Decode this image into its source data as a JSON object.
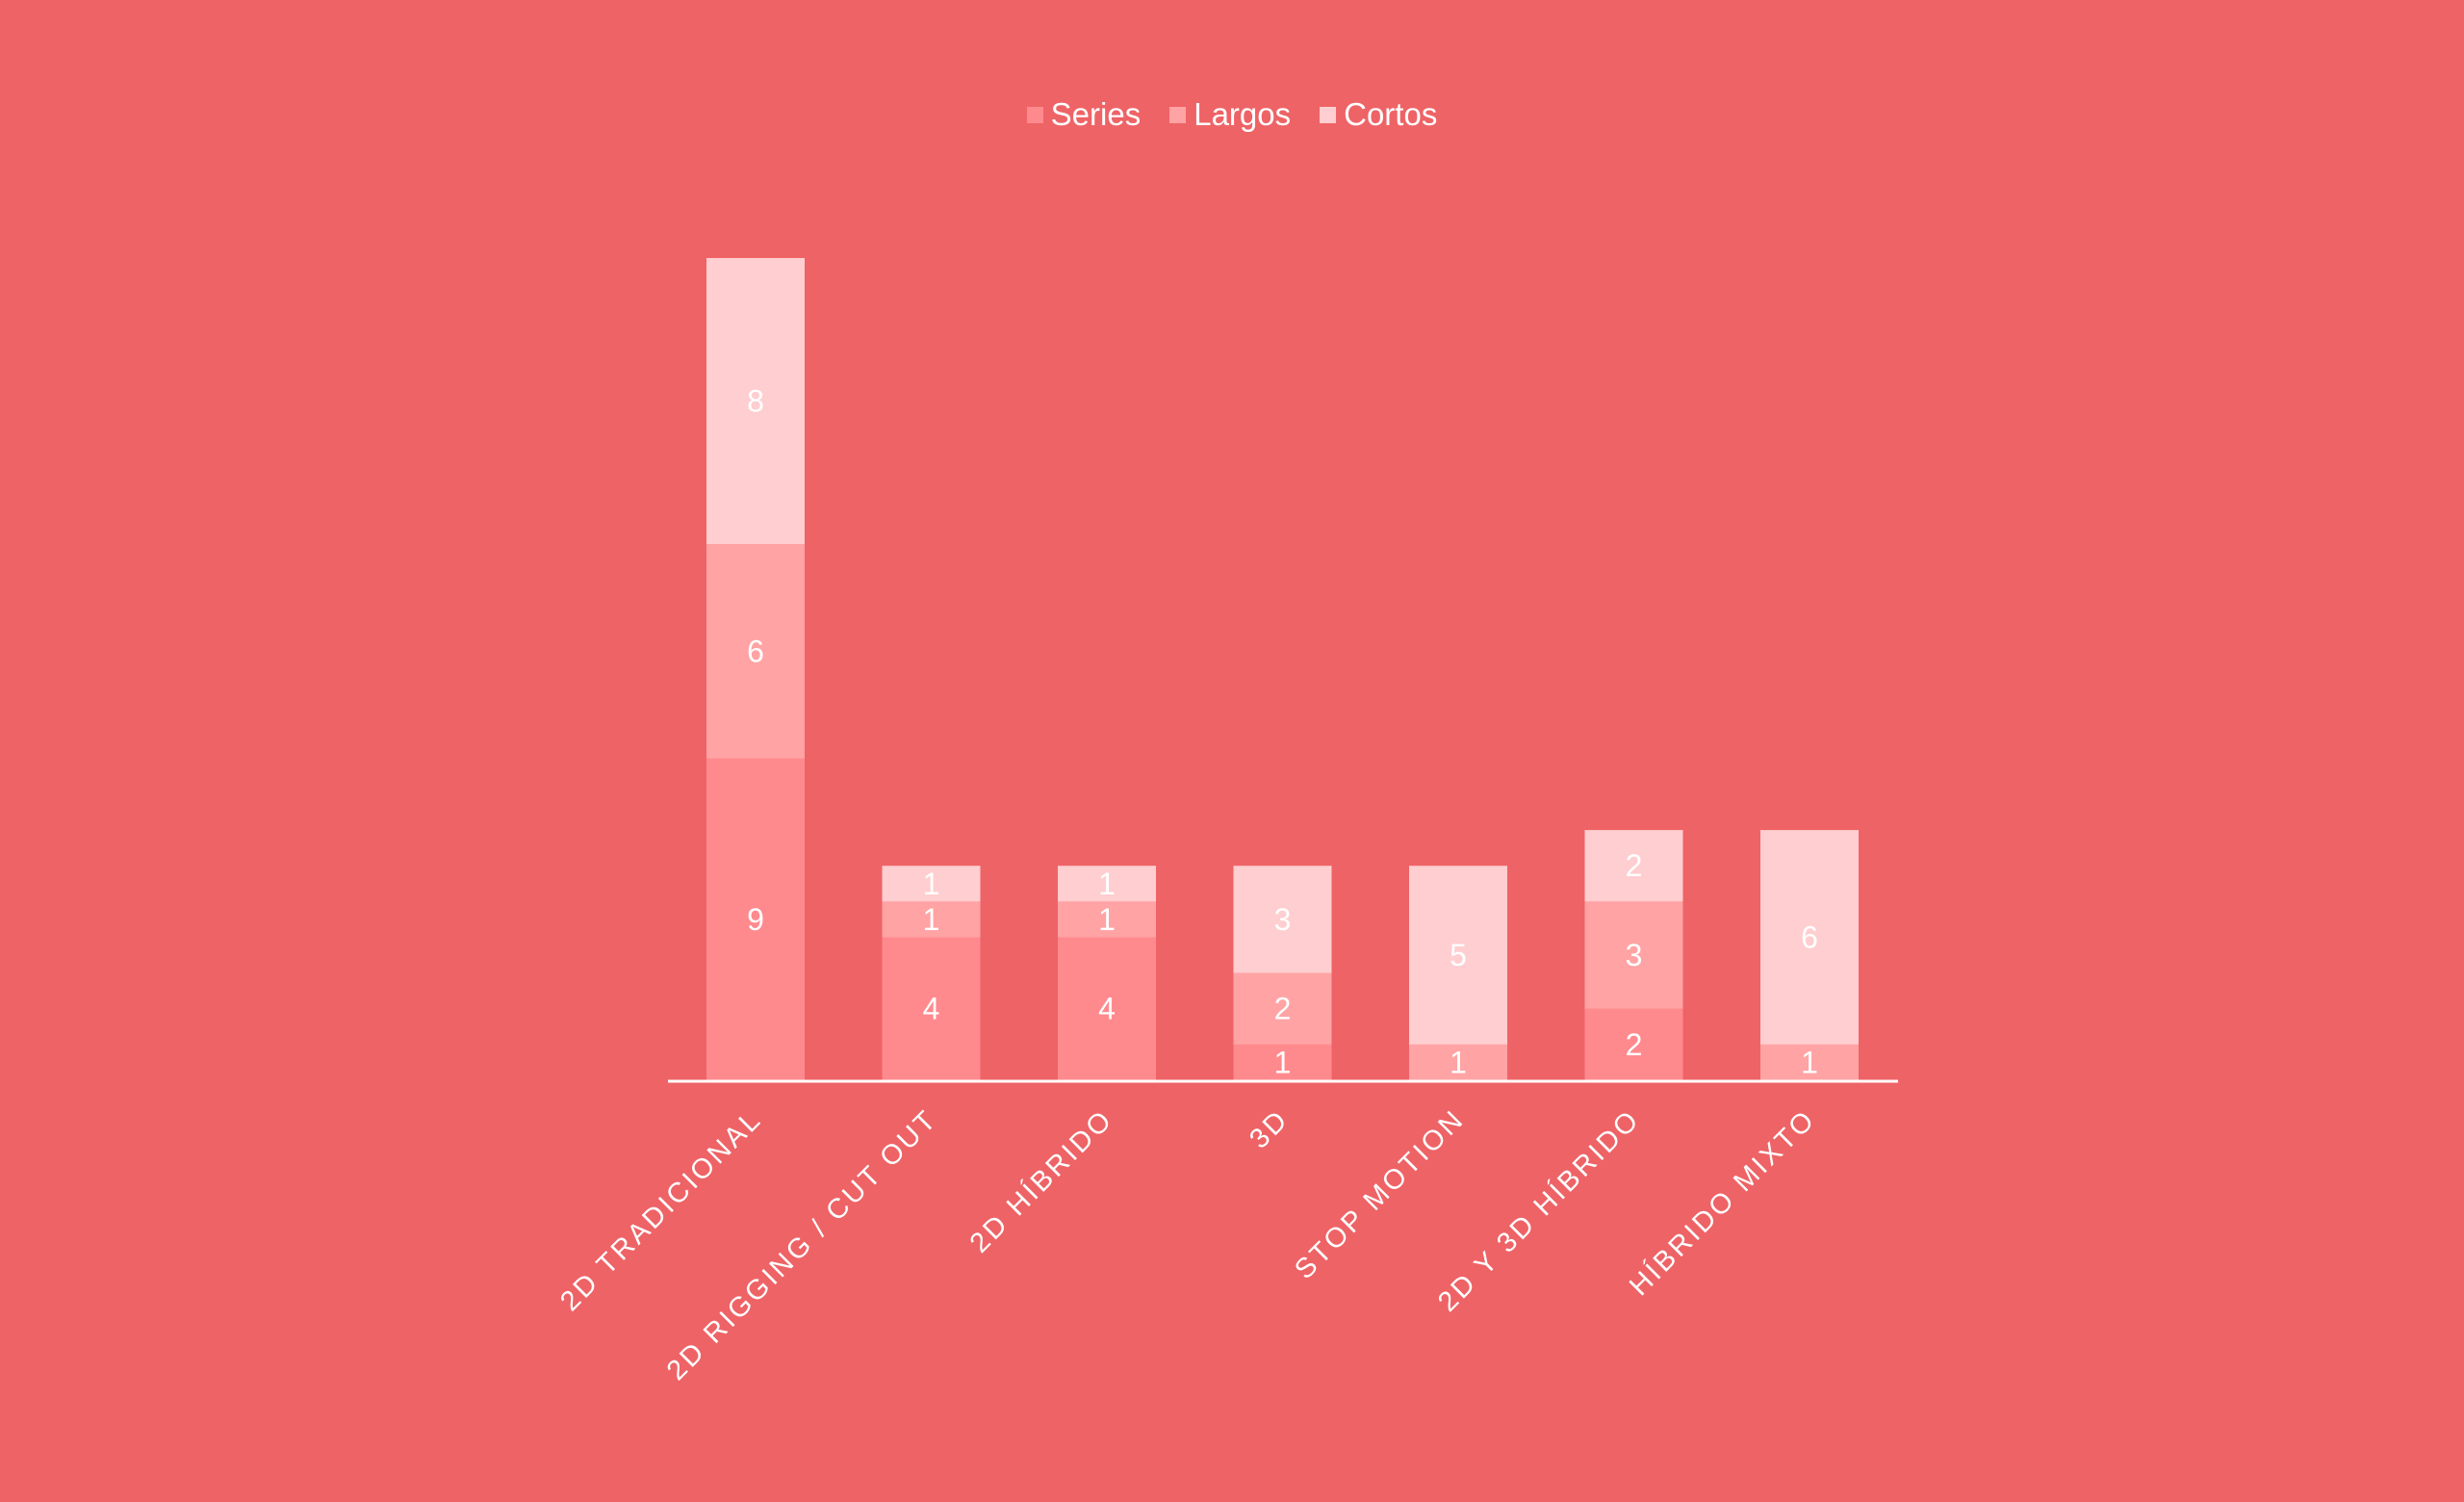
{
  "chart_data": {
    "type": "bar",
    "stacked": true,
    "categories": [
      "2D TRADICIONAL",
      "2D RIGGING / CUT OUT",
      "2D HÍBRIDO",
      "3D",
      "STOP MOTION",
      "2D Y 3D HÍBRIDO",
      "HÍBRIDO MIXTO"
    ],
    "series": [
      {
        "name": "Series",
        "color": "#FF8A8E",
        "values": [
          9,
          4,
          4,
          1,
          0,
          2,
          0
        ]
      },
      {
        "name": "Largos",
        "color": "#FFA3A4",
        "values": [
          6,
          1,
          1,
          2,
          1,
          3,
          1
        ]
      },
      {
        "name": "Cortos",
        "color": "#FFCED0",
        "values": [
          8,
          1,
          1,
          3,
          5,
          2,
          6
        ]
      }
    ],
    "title": "",
    "xlabel": "",
    "ylabel": "",
    "ylim": [
      0,
      23
    ],
    "grid": false,
    "legend_position": "top-center",
    "data_labels": true,
    "x_tick_rotation": -45,
    "axis_color": "#ffffff",
    "label_color": "#ffffff",
    "background": "#EE6366"
  }
}
